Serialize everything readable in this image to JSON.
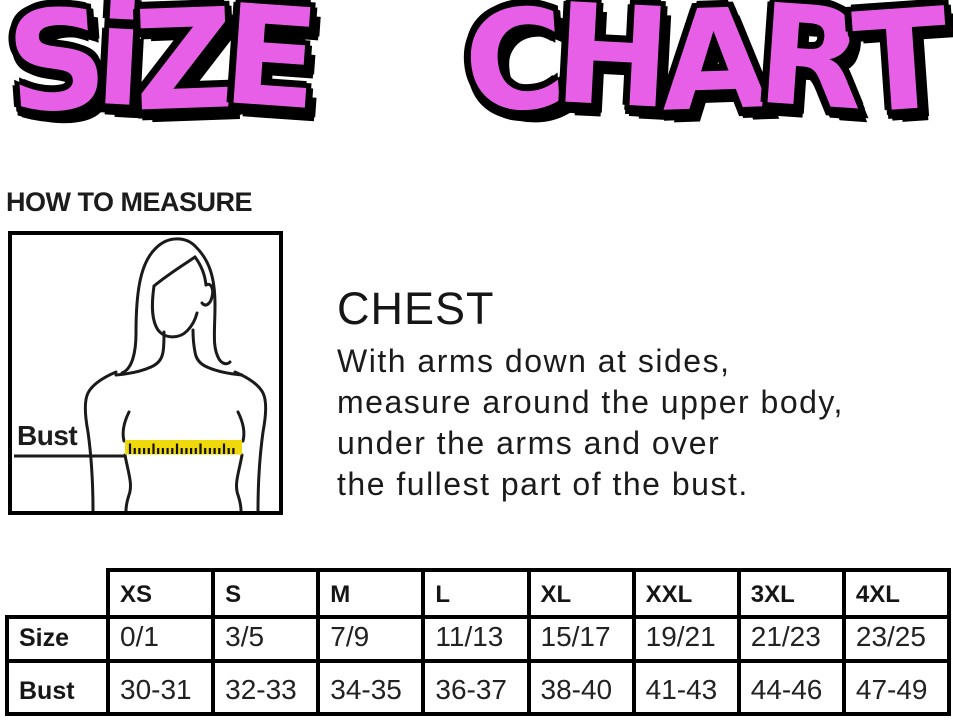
{
  "title": {
    "word1": "SiZE",
    "word2": "CHART",
    "fill_color": "#E65FE6",
    "outline_color": "#000000"
  },
  "sections": {
    "how_to_measure_heading": "HOW TO MEASURE"
  },
  "figure": {
    "bust_label": "Bust",
    "tape_color": "#F0D90A",
    "line_color": "#1a1a1a"
  },
  "chest": {
    "heading": "CHEST",
    "lines": [
      "With arms down at sides,",
      "measure around the upper body,",
      "under the arms and over",
      "the fullest part of the bust."
    ]
  },
  "size_table": {
    "column_headers": [
      "",
      "XS",
      "S",
      "M",
      "L",
      "XL",
      "XXL",
      "3XL",
      "4XL"
    ],
    "rows": [
      {
        "label": "Size",
        "values": [
          "0/1",
          "3/5",
          "7/9",
          "11/13",
          "15/17",
          "19/21",
          "21/23",
          "23/25"
        ]
      },
      {
        "label": "Bust",
        "values": [
          "30-31",
          "32-33",
          "34-35",
          "36-37",
          "38-40",
          "41-43",
          "44-46",
          "47-49"
        ]
      }
    ]
  }
}
